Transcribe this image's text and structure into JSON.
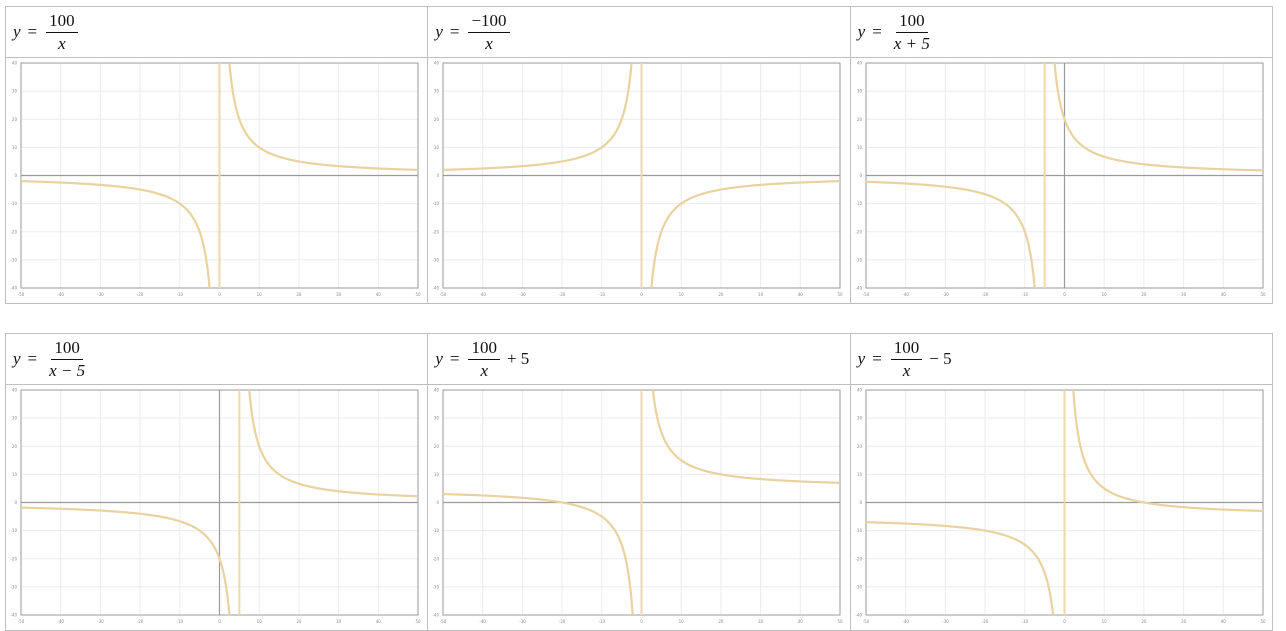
{
  "palette": {
    "curve": "#e8d2a0",
    "asymptote": "#eed9a8",
    "axis": "#9a9a9a",
    "grid": "#ececec",
    "frame": "#9a9a9a"
  },
  "tables": [
    {
      "cells": [
        {
          "lhs": "y",
          "eq": "=",
          "num": "100",
          "den": "x",
          "tail": ""
        },
        {
          "lhs": "y",
          "eq": "=",
          "num": "−100",
          "den": "x",
          "tail": ""
        },
        {
          "lhs": "y",
          "eq": "=",
          "num": "100",
          "den": "x + 5",
          "tail": ""
        }
      ]
    },
    {
      "cells": [
        {
          "lhs": "y",
          "eq": "=",
          "num": "100",
          "den": "x − 5",
          "tail": ""
        },
        {
          "lhs": "y",
          "eq": "=",
          "num": "100",
          "den": "x",
          "tail": "+ 5"
        },
        {
          "lhs": "y",
          "eq": "=",
          "num": "100",
          "den": "x",
          "tail": "− 5"
        }
      ]
    }
  ],
  "chart_data": [
    {
      "type": "line",
      "series": [
        {
          "a": 100,
          "h": 0,
          "k": 0
        }
      ],
      "vertical_asymptote": 0,
      "horizontal_asymptote": 0,
      "xlim": [
        -50,
        50
      ],
      "ylim": [
        -40,
        40
      ],
      "x_ticks": [
        -50,
        -40,
        -30,
        -20,
        -10,
        0,
        10,
        20,
        30,
        40,
        50
      ],
      "y_ticks": [
        -40,
        -30,
        -20,
        -10,
        0,
        10,
        20,
        30,
        40
      ],
      "grid": true
    },
    {
      "type": "line",
      "series": [
        {
          "a": -100,
          "h": 0,
          "k": 0
        }
      ],
      "vertical_asymptote": 0,
      "horizontal_asymptote": 0,
      "xlim": [
        -50,
        50
      ],
      "ylim": [
        -40,
        40
      ],
      "x_ticks": [
        -50,
        -40,
        -30,
        -20,
        -10,
        0,
        10,
        20,
        30,
        40,
        50
      ],
      "y_ticks": [
        -40,
        -30,
        -20,
        -10,
        0,
        10,
        20,
        30,
        40
      ],
      "grid": true
    },
    {
      "type": "line",
      "series": [
        {
          "a": 100,
          "h": -5,
          "k": 0
        }
      ],
      "vertical_asymptote": -5,
      "horizontal_asymptote": 0,
      "xlim": [
        -50,
        50
      ],
      "ylim": [
        -40,
        40
      ],
      "x_ticks": [
        -50,
        -40,
        -30,
        -20,
        -10,
        0,
        10,
        20,
        30,
        40,
        50
      ],
      "y_ticks": [
        -40,
        -30,
        -20,
        -10,
        0,
        10,
        20,
        30,
        40
      ],
      "grid": true
    },
    {
      "type": "line",
      "series": [
        {
          "a": 100,
          "h": 5,
          "k": 0
        }
      ],
      "vertical_asymptote": 5,
      "horizontal_asymptote": 0,
      "xlim": [
        -50,
        50
      ],
      "ylim": [
        -40,
        40
      ],
      "x_ticks": [
        -50,
        -40,
        -30,
        -20,
        -10,
        0,
        10,
        20,
        30,
        40,
        50
      ],
      "y_ticks": [
        -40,
        -30,
        -20,
        -10,
        0,
        10,
        20,
        30,
        40
      ],
      "grid": true
    },
    {
      "type": "line",
      "series": [
        {
          "a": 100,
          "h": 0,
          "k": 5
        }
      ],
      "vertical_asymptote": 0,
      "horizontal_asymptote": 5,
      "xlim": [
        -50,
        50
      ],
      "ylim": [
        -40,
        40
      ],
      "x_ticks": [
        -50,
        -40,
        -30,
        -20,
        -10,
        0,
        10,
        20,
        30,
        40,
        50
      ],
      "y_ticks": [
        -40,
        -30,
        -20,
        -10,
        0,
        10,
        20,
        30,
        40
      ],
      "grid": true
    },
    {
      "type": "line",
      "series": [
        {
          "a": 100,
          "h": 0,
          "k": -5
        }
      ],
      "vertical_asymptote": 0,
      "horizontal_asymptote": -5,
      "xlim": [
        -50,
        50
      ],
      "ylim": [
        -40,
        40
      ],
      "x_ticks": [
        -50,
        -40,
        -30,
        -20,
        -10,
        0,
        10,
        20,
        30,
        40,
        50
      ],
      "y_ticks": [
        -40,
        -30,
        -20,
        -10,
        0,
        10,
        20,
        30,
        40
      ],
      "grid": true
    }
  ]
}
